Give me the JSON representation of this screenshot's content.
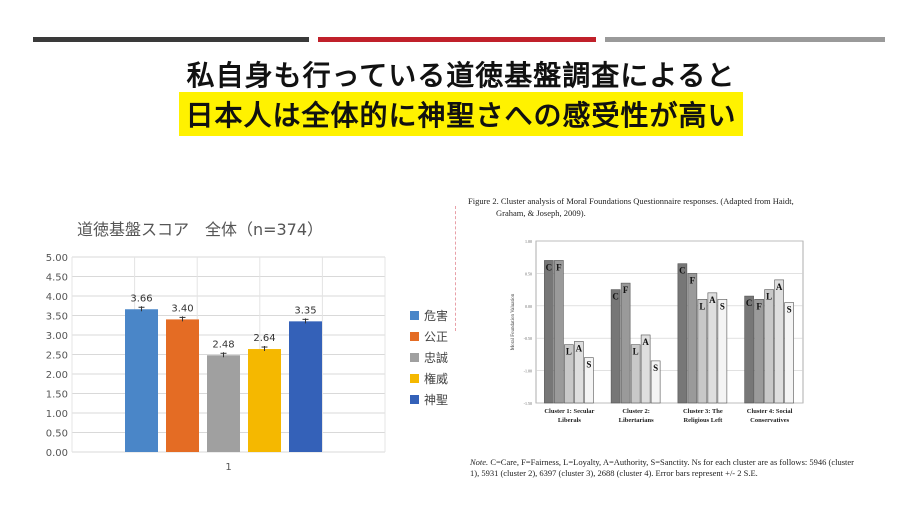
{
  "slide": {
    "title_line1": "私自身も行っている道徳基盤調査によると",
    "title_line2": "日本人は全体的に神聖さへの感受性が高い",
    "accent_colors": {
      "dark": "#3a3a3a",
      "red": "#c0202a",
      "gray": "#9a9a9a",
      "highlight": "#fff200"
    }
  },
  "chart_data": [
    {
      "type": "bar",
      "title": "道徳基盤スコア　全体（n=374）",
      "categories": [
        "1"
      ],
      "series": [
        {
          "name": "危害",
          "values": [
            3.66
          ],
          "color": "#4a86c8"
        },
        {
          "name": "公正",
          "values": [
            3.4
          ],
          "color": "#e46c24"
        },
        {
          "name": "忠誠",
          "values": [
            2.48
          ],
          "color": "#a0a0a0"
        },
        {
          "name": "権威",
          "values": [
            2.64
          ],
          "color": "#f5b800"
        },
        {
          "name": "神聖",
          "values": [
            3.35
          ],
          "color": "#3461b8"
        }
      ],
      "data_labels": [
        "3.66",
        "3.40",
        "2.48",
        "2.64",
        "3.35"
      ],
      "ylim": [
        0,
        5
      ],
      "yticks": [
        "0.00",
        "0.50",
        "1.00",
        "1.50",
        "2.00",
        "2.50",
        "3.00",
        "3.50",
        "4.00",
        "4.50",
        "5.00"
      ],
      "grid": true,
      "legend": "right",
      "error_bars": true
    },
    {
      "type": "bar",
      "caption": "Figure 2. Cluster analysis of Moral Foundations Questionnaire responses. (Adapted from Haidt, Graham, & Joseph, 2009).",
      "caption_line1": "Figure 2. Cluster analysis of Moral Foundations Questionnaire responses. (Adapted from Haidt,",
      "caption_line2": "Graham, & Joseph, 2009).",
      "ylabel": "Moral Foundation Valuation",
      "yticks": [
        "1.00",
        "0.50",
        "0.00",
        "-0.50",
        "-1.00",
        "-1.50"
      ],
      "ylim": [
        -1.5,
        1.0
      ],
      "bar_letters": [
        "C",
        "F",
        "L",
        "A",
        "S"
      ],
      "clusters": [
        {
          "label_line1": "Cluster 1: Secular",
          "label_line2": "Liberals",
          "values": [
            0.7,
            0.7,
            -0.6,
            -0.55,
            -0.8
          ]
        },
        {
          "label_line1": "Cluster 2:",
          "label_line2": "Libertarians",
          "values": [
            0.25,
            0.35,
            -0.6,
            -0.45,
            -0.85
          ]
        },
        {
          "label_line1": "Cluster 3: The",
          "label_line2": "Religious Left",
          "values": [
            0.65,
            0.5,
            0.1,
            0.2,
            0.1
          ]
        },
        {
          "label_line1": "Cluster 4: Social",
          "label_line2": "Conservatives",
          "values": [
            0.15,
            0.1,
            0.25,
            0.4,
            0.05
          ]
        }
      ],
      "note_label": "Note.",
      "note_text": "C=Care, F=Fairness, L=Loyalty, A=Authority, S=Sanctity. Ns for each cluster are as follows: 5946 (cluster 1), 5931 (cluster 2), 6397 (cluster 3), 2688 (cluster 4). Error bars represent +/- 2 S.E."
    }
  ]
}
